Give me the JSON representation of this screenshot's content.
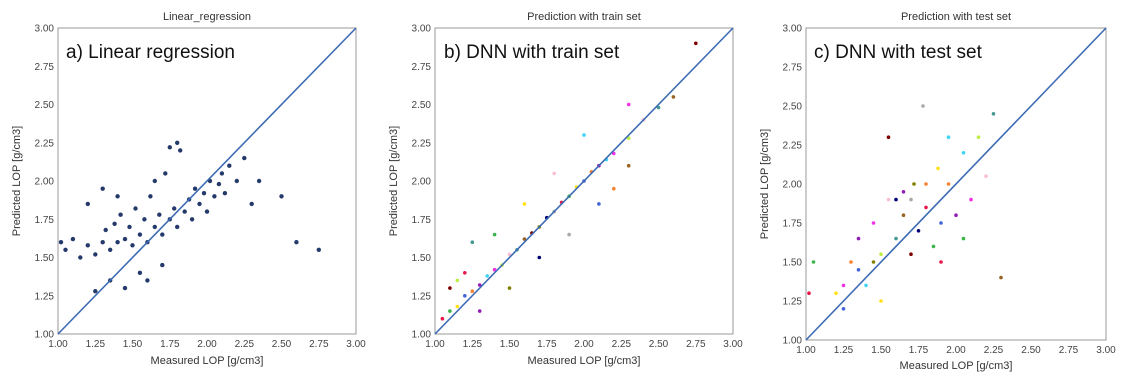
{
  "palette": [
    "#e6194b",
    "#3cb44b",
    "#ffe119",
    "#4363d8",
    "#f58231",
    "#911eb4",
    "#42d4f4",
    "#f032e6",
    "#bfef45",
    "#fabed4",
    "#469990",
    "#9a6324",
    "#800000",
    "#808000",
    "#000075",
    "#a9a9a9"
  ],
  "identity_line_color": "#3d6bb3",
  "chart_data": [
    {
      "type": "scatter",
      "title": "Linear_regression",
      "panel_label": "a) Linear regression",
      "xlabel": "Measured LOP [g/cm3]",
      "ylabel": "Predicted LOP [g/cm3]",
      "xlim": [
        1.0,
        3.0
      ],
      "ylim": [
        1.0,
        3.0
      ],
      "ticks": [
        "1.00",
        "1.25",
        "1.50",
        "1.75",
        "2.00",
        "2.25",
        "2.50",
        "2.75",
        "3.00"
      ],
      "marker_color": "#243a6b",
      "marker_style": "single",
      "grid": false,
      "series": [
        {
          "points": [
            [
              1.02,
              1.6
            ],
            [
              1.05,
              1.55
            ],
            [
              1.1,
              1.62
            ],
            [
              1.15,
              1.5
            ],
            [
              1.2,
              1.58
            ],
            [
              1.25,
              1.52
            ],
            [
              1.3,
              1.6
            ],
            [
              1.32,
              1.68
            ],
            [
              1.35,
              1.55
            ],
            [
              1.38,
              1.72
            ],
            [
              1.4,
              1.6
            ],
            [
              1.42,
              1.78
            ],
            [
              1.45,
              1.62
            ],
            [
              1.48,
              1.7
            ],
            [
              1.5,
              1.58
            ],
            [
              1.52,
              1.82
            ],
            [
              1.55,
              1.65
            ],
            [
              1.58,
              1.75
            ],
            [
              1.6,
              1.6
            ],
            [
              1.62,
              1.9
            ],
            [
              1.65,
              1.7
            ],
            [
              1.68,
              1.78
            ],
            [
              1.7,
              1.65
            ],
            [
              1.72,
              2.05
            ],
            [
              1.75,
              1.75
            ],
            [
              1.78,
              1.82
            ],
            [
              1.8,
              1.7
            ],
            [
              1.82,
              2.2
            ],
            [
              1.85,
              1.8
            ],
            [
              1.88,
              1.88
            ],
            [
              1.9,
              1.75
            ],
            [
              1.92,
              1.95
            ],
            [
              1.95,
              1.85
            ],
            [
              1.98,
              1.92
            ],
            [
              2.0,
              1.8
            ],
            [
              2.02,
              2.0
            ],
            [
              2.05,
              1.9
            ],
            [
              2.08,
              1.98
            ],
            [
              2.1,
              2.05
            ],
            [
              2.12,
              1.92
            ],
            [
              2.15,
              2.1
            ],
            [
              2.2,
              2.0
            ],
            [
              2.25,
              2.15
            ],
            [
              2.3,
              1.85
            ],
            [
              2.35,
              2.0
            ],
            [
              2.5,
              1.9
            ],
            [
              2.6,
              1.6
            ],
            [
              2.75,
              1.55
            ],
            [
              1.55,
              1.4
            ],
            [
              1.6,
              1.35
            ],
            [
              1.7,
              1.45
            ],
            [
              1.45,
              1.3
            ],
            [
              1.35,
              1.35
            ],
            [
              1.25,
              1.28
            ],
            [
              1.8,
              2.25
            ],
            [
              1.75,
              2.22
            ],
            [
              1.3,
              1.95
            ],
            [
              1.2,
              1.85
            ],
            [
              1.4,
              1.9
            ],
            [
              1.65,
              2.0
            ]
          ]
        }
      ]
    },
    {
      "type": "scatter",
      "title": "Prediction with train set",
      "panel_label": "b) DNN with train set",
      "xlabel": "Measured LOP [g/cm3]",
      "ylabel": "Predicted LOP [g/cm3]",
      "xlim": [
        1.0,
        3.0
      ],
      "ylim": [
        1.0,
        3.0
      ],
      "ticks": [
        "1.00",
        "1.25",
        "1.50",
        "1.75",
        "2.00",
        "2.25",
        "2.50",
        "2.75",
        "3.00"
      ],
      "marker_style": "multicolor",
      "grid": false,
      "series": [
        {
          "points": [
            [
              1.05,
              1.1
            ],
            [
              1.1,
              1.15
            ],
            [
              1.15,
              1.18
            ],
            [
              1.2,
              1.25
            ],
            [
              1.25,
              1.28
            ],
            [
              1.3,
              1.32
            ],
            [
              1.35,
              1.38
            ],
            [
              1.4,
              1.42
            ],
            [
              1.45,
              1.45
            ],
            [
              1.5,
              1.52
            ],
            [
              1.55,
              1.55
            ],
            [
              1.6,
              1.62
            ],
            [
              1.65,
              1.66
            ],
            [
              1.7,
              1.7
            ],
            [
              1.75,
              1.76
            ],
            [
              1.8,
              1.8
            ],
            [
              1.85,
              1.86
            ],
            [
              1.9,
              1.9
            ],
            [
              1.95,
              1.96
            ],
            [
              2.0,
              2.0
            ],
            [
              2.05,
              2.06
            ],
            [
              2.1,
              2.1
            ],
            [
              2.15,
              2.14
            ],
            [
              2.2,
              2.18
            ],
            [
              2.3,
              2.28
            ],
            [
              2.4,
              2.4
            ],
            [
              2.5,
              2.48
            ],
            [
              2.6,
              2.55
            ],
            [
              2.75,
              2.9
            ],
            [
              1.5,
              1.3
            ],
            [
              1.7,
              1.5
            ],
            [
              1.9,
              1.65
            ],
            [
              1.2,
              1.4
            ],
            [
              1.4,
              1.65
            ],
            [
              1.6,
              1.85
            ],
            [
              2.1,
              1.85
            ],
            [
              2.2,
              1.95
            ],
            [
              1.3,
              1.15
            ],
            [
              2.0,
              2.3
            ],
            [
              2.3,
              2.5
            ],
            [
              1.15,
              1.35
            ],
            [
              1.8,
              2.05
            ],
            [
              1.25,
              1.6
            ],
            [
              2.3,
              2.1
            ],
            [
              1.1,
              1.3
            ]
          ]
        }
      ]
    },
    {
      "type": "scatter",
      "title": "Prediction with test set",
      "panel_label": "c) DNN with test set",
      "xlabel": "Measured LOP [g/cm3]",
      "ylabel": "Predicted LOP [g/cm3]",
      "xlim": [
        1.0,
        3.0
      ],
      "ylim": [
        1.0,
        3.0
      ],
      "ticks": [
        "1.00",
        "1.25",
        "1.50",
        "1.75",
        "2.00",
        "2.25",
        "2.50",
        "2.75",
        "3.00"
      ],
      "marker_style": "multicolor",
      "grid": false,
      "series": [
        {
          "points": [
            [
              1.02,
              1.3
            ],
            [
              1.05,
              1.5
            ],
            [
              1.2,
              1.3
            ],
            [
              1.25,
              1.2
            ],
            [
              1.3,
              1.5
            ],
            [
              1.35,
              1.65
            ],
            [
              1.4,
              1.35
            ],
            [
              1.45,
              1.75
            ],
            [
              1.5,
              1.55
            ],
            [
              1.55,
              1.9
            ],
            [
              1.6,
              1.65
            ],
            [
              1.65,
              1.8
            ],
            [
              1.7,
              1.55
            ],
            [
              1.72,
              2.0
            ],
            [
              1.75,
              1.7
            ],
            [
              1.78,
              2.5
            ],
            [
              1.8,
              1.85
            ],
            [
              1.85,
              1.6
            ],
            [
              1.88,
              2.1
            ],
            [
              1.9,
              1.75
            ],
            [
              1.95,
              2.0
            ],
            [
              2.0,
              1.8
            ],
            [
              2.05,
              2.2
            ],
            [
              2.1,
              1.9
            ],
            [
              2.15,
              2.3
            ],
            [
              2.2,
              2.05
            ],
            [
              2.25,
              2.45
            ],
            [
              2.3,
              1.4
            ],
            [
              1.55,
              2.3
            ],
            [
              1.45,
              1.5
            ],
            [
              1.6,
              1.9
            ],
            [
              1.7,
              1.9
            ],
            [
              1.9,
              1.5
            ],
            [
              2.05,
              1.65
            ],
            [
              1.5,
              1.25
            ],
            [
              1.35,
              1.45
            ],
            [
              1.8,
              2.0
            ],
            [
              1.65,
              1.95
            ],
            [
              1.95,
              2.3
            ],
            [
              1.25,
              1.35
            ]
          ]
        }
      ]
    }
  ]
}
